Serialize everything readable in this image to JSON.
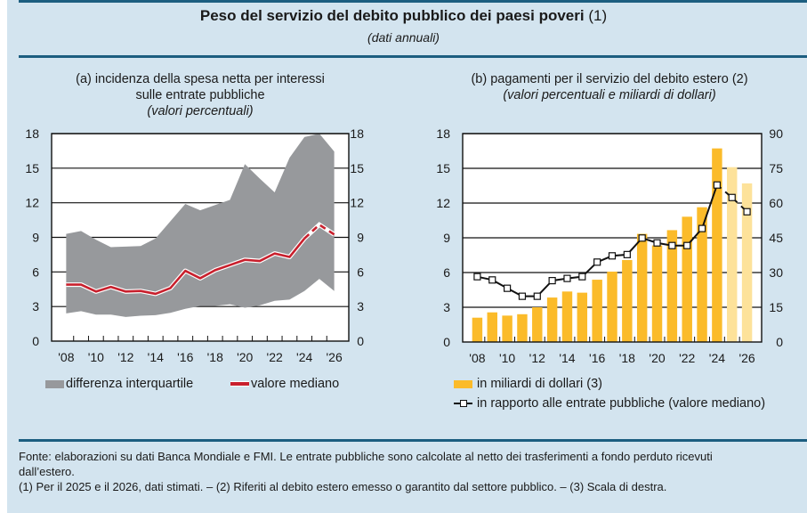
{
  "header": {
    "title": "Peso del servizio del debito pubblico dei paesi poveri",
    "title_note": "(1)",
    "subtitle": "(dati annuali)"
  },
  "colors": {
    "background": "#d3e4ef",
    "rule": "#1c5e80",
    "interquartile_fill": "#97999c",
    "median_line": "#c8202d",
    "bar_actual": "#fbbb2a",
    "bar_estimate": "#fde29a",
    "ratio_line": "#111111"
  },
  "chart_data": [
    {
      "id": "a",
      "type": "area",
      "title_line1": "(a) incidenza della spesa netta per interessi",
      "title_line2": "sulle entrate pubbliche",
      "units": "(valori percentuali)",
      "x": [
        2008,
        2009,
        2010,
        2011,
        2012,
        2013,
        2014,
        2015,
        2016,
        2017,
        2018,
        2019,
        2020,
        2021,
        2022,
        2023,
        2024,
        2025,
        2026
      ],
      "x_tick_labels": [
        "'08",
        "'10",
        "'12",
        "'14",
        "'16",
        "'18",
        "'20",
        "'22",
        "'24",
        "'26"
      ],
      "ylim": [
        0,
        18
      ],
      "y_ticks": [
        0,
        3,
        6,
        9,
        12,
        15,
        18
      ],
      "y2_ticks": [
        0,
        3,
        6,
        9,
        12,
        15,
        18
      ],
      "grid": true,
      "estimated_from": 2025,
      "series": [
        {
          "name": "differenza interquartile",
          "kind": "band",
          "lower": [
            2.4,
            2.6,
            2.3,
            2.3,
            2.1,
            2.2,
            2.25,
            2.45,
            2.8,
            3.05,
            3.05,
            3.2,
            2.9,
            3.1,
            3.5,
            3.6,
            4.35,
            5.4,
            4.35
          ],
          "upper": [
            9.3,
            9.55,
            8.8,
            8.15,
            8.2,
            8.25,
            8.9,
            10.4,
            11.9,
            11.35,
            11.8,
            12.25,
            15.35,
            14.1,
            12.9,
            15.9,
            17.7,
            18.0,
            16.45
          ]
        },
        {
          "name": "valore mediano",
          "kind": "line",
          "values": [
            4.9,
            4.9,
            4.3,
            4.7,
            4.3,
            4.35,
            4.1,
            4.6,
            6.1,
            5.45,
            6.15,
            6.6,
            7.05,
            6.95,
            7.6,
            7.3,
            8.9,
            10.1,
            9.25
          ]
        }
      ],
      "legend": [
        "differenza interquartile",
        "valore mediano"
      ],
      "legend_position": "bottom"
    },
    {
      "id": "b",
      "type": "bar",
      "title_line1": "(b) pagamenti per il servizio del debito estero (2)",
      "units": "(valori percentuali e miliardi di dollari)",
      "x": [
        2008,
        2009,
        2010,
        2011,
        2012,
        2013,
        2014,
        2015,
        2016,
        2017,
        2018,
        2019,
        2020,
        2021,
        2022,
        2023,
        2024,
        2025,
        2026
      ],
      "x_tick_labels": [
        "'08",
        "'10",
        "'12",
        "'14",
        "'16",
        "'18",
        "'20",
        "'22",
        "'24",
        "'26"
      ],
      "ylim": [
        0,
        18
      ],
      "y2lim": [
        0,
        90
      ],
      "y_ticks": [
        0,
        3,
        6,
        9,
        12,
        15,
        18
      ],
      "y2_ticks": [
        0,
        15,
        30,
        45,
        60,
        75,
        90
      ],
      "grid": true,
      "estimated_from": 2025,
      "series": [
        {
          "name": "in miliardi di dollari (3)",
          "kind": "bar",
          "axis": "right",
          "values": [
            10.5,
            12.8,
            11.4,
            12.0,
            15.0,
            19.2,
            21.8,
            21.3,
            26.9,
            30.4,
            35.4,
            46.7,
            41.7,
            48.3,
            54.1,
            58.2,
            83.6,
            75.5,
            68.5
          ]
        },
        {
          "name": "in rapporto alle entrate pubbliche (valore mediano)",
          "kind": "line",
          "axis": "left",
          "values": [
            5.64,
            5.36,
            4.64,
            3.95,
            3.95,
            5.3,
            5.49,
            5.64,
            6.9,
            7.44,
            7.55,
            8.98,
            8.56,
            8.33,
            8.33,
            9.8,
            13.56,
            12.48,
            11.25
          ]
        }
      ],
      "legend": [
        "in miliardi di dollari (3)",
        "in rapporto alle entrate pubbliche (valore mediano)"
      ],
      "legend_position": "bottom"
    }
  ],
  "footer": {
    "source_line1": "Fonte: elaborazioni su dati Banca Mondiale e FMI. Le entrate pubbliche sono calcolate al netto dei trasferimenti a fondo perduto ricevuti",
    "source_line2": "dall’estero.",
    "notes": "(1) Per il 2025 e il 2026, dati stimati. – (2) Riferiti al debito estero emesso o garantito dal settore pubblico. – (3) Scala di destra."
  }
}
